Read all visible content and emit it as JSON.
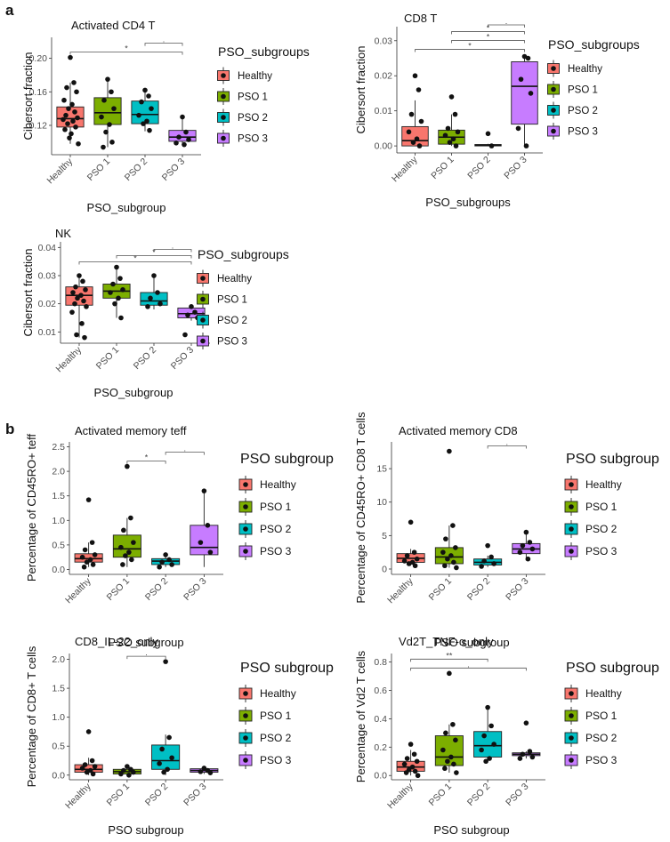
{
  "panel_labels": [
    "a",
    "b"
  ],
  "colors": {
    "Healthy": "#F8766D",
    "PSO 1": "#7CAE00",
    "PSO 2": "#00BFC4",
    "PSO 3": "#C77CFF"
  },
  "chart_data": [
    {
      "type": "box",
      "title": "Activated CD4 T",
      "xlabel": "PSO_subgroup",
      "ylabel": "Cibersort fraction",
      "categories": [
        "Healthy",
        "PSO 1",
        "PSO 2",
        "PSO 3"
      ],
      "yticks": [
        0.12,
        0.16,
        0.2
      ],
      "ytick_labels": [
        "0.12",
        "0.16",
        "0.20"
      ],
      "ylim": [
        0.085,
        0.225
      ],
      "boxes": [
        {
          "group": "Healthy",
          "min": 0.098,
          "q1": 0.118,
          "median": 0.128,
          "q3": 0.142,
          "max": 0.171
        },
        {
          "group": "PSO 1",
          "min": 0.094,
          "q1": 0.121,
          "median": 0.135,
          "q3": 0.153,
          "max": 0.175
        },
        {
          "group": "PSO 2",
          "min": 0.113,
          "q1": 0.122,
          "median": 0.133,
          "q3": 0.149,
          "max": 0.163
        },
        {
          "group": "PSO 3",
          "min": 0.097,
          "q1": 0.101,
          "median": 0.106,
          "q3": 0.114,
          "max": 0.13
        }
      ],
      "points": [
        {
          "group": "Healthy",
          "values": [
            0.201,
            0.171,
            0.165,
            0.16,
            0.15,
            0.145,
            0.14,
            0.136,
            0.132,
            0.129,
            0.127,
            0.125,
            0.122,
            0.118,
            0.115,
            0.11,
            0.105,
            0.098
          ]
        },
        {
          "group": "PSO 1",
          "values": [
            0.175,
            0.16,
            0.15,
            0.14,
            0.13,
            0.121,
            0.112,
            0.1,
            0.094
          ]
        },
        {
          "group": "PSO 2",
          "values": [
            0.162,
            0.155,
            0.148,
            0.14,
            0.132,
            0.125,
            0.122,
            0.114
          ]
        },
        {
          "group": "PSO 3",
          "values": [
            0.13,
            0.112,
            0.106,
            0.103,
            0.099,
            0.097
          ]
        }
      ],
      "significance": [
        {
          "from": "Healthy",
          "to": "PSO 3",
          "label": "*"
        },
        {
          "from": "PSO 2",
          "to": "PSO 3",
          "label": "."
        }
      ],
      "legend_title": "PSO_subgroups",
      "legend_items": [
        "Healthy",
        "PSO 1",
        "PSO 2",
        "PSO 3"
      ]
    },
    {
      "type": "box",
      "title": "CD8 T",
      "xlabel": "PSO_subgroups",
      "ylabel": "Cibersort fraction",
      "categories": [
        "Healthy",
        "PSO 1",
        "PSO 2",
        "PSO 3"
      ],
      "yticks": [
        0.0,
        0.01,
        0.02,
        0.03
      ],
      "ytick_labels": [
        "0.00",
        "0.01",
        "0.02",
        "0.03"
      ],
      "ylim": [
        -0.002,
        0.034
      ],
      "boxes": [
        {
          "group": "Healthy",
          "min": 0.0,
          "q1": 0.0,
          "median": 0.0015,
          "q3": 0.0055,
          "max": 0.013
        },
        {
          "group": "PSO 1",
          "min": 0.0,
          "q1": 0.0005,
          "median": 0.0025,
          "q3": 0.0045,
          "max": 0.009
        },
        {
          "group": "PSO 2",
          "min": 0.0,
          "q1": 0.0,
          "median": 0.0002,
          "q3": 0.0004,
          "max": 0.0006
        },
        {
          "group": "PSO 3",
          "min": 0.0,
          "q1": 0.0062,
          "median": 0.017,
          "q3": 0.024,
          "max": 0.026
        }
      ],
      "points": [
        {
          "group": "Healthy",
          "values": [
            0.02,
            0.016,
            0.009,
            0.007,
            0.004,
            0.002,
            0.001,
            0.0
          ]
        },
        {
          "group": "PSO 1",
          "values": [
            0.014,
            0.009,
            0.005,
            0.004,
            0.003,
            0.002,
            0.001,
            0.0
          ]
        },
        {
          "group": "PSO 2",
          "values": [
            0.0035,
            0.0
          ]
        },
        {
          "group": "PSO 3",
          "values": [
            0.0255,
            0.025,
            0.019,
            0.015,
            0.005,
            0.0
          ]
        }
      ],
      "significance": [
        {
          "from": "Healthy",
          "to": "PSO 3",
          "label": "*"
        },
        {
          "from": "PSO 1",
          "to": "PSO 3",
          "label": "*"
        },
        {
          "from": "PSO 1",
          "to": "PSO 3",
          "label": "*"
        },
        {
          "from": "PSO 2",
          "to": "PSO 3",
          "label": "."
        }
      ],
      "legend_title": "PSO_subgroups",
      "legend_items": [
        "Healthy",
        "PSO 1",
        "PSO 2",
        "PSO 3"
      ]
    },
    {
      "type": "box",
      "title": "NK",
      "xlabel": "PSO_subgroup",
      "ylabel": "Cibersort fraction",
      "categories": [
        "Healthy",
        "PSO 1",
        "PSO 2",
        "PSO 3"
      ],
      "yticks": [
        0.01,
        0.02,
        0.03,
        0.04
      ],
      "ytick_labels": [
        "0.01",
        "0.02",
        "0.03",
        "0.04"
      ],
      "ylim": [
        0.006,
        0.042
      ],
      "boxes": [
        {
          "group": "Healthy",
          "min": 0.008,
          "q1": 0.0195,
          "median": 0.023,
          "q3": 0.026,
          "max": 0.03
        },
        {
          "group": "PSO 1",
          "min": 0.015,
          "q1": 0.022,
          "median": 0.0245,
          "q3": 0.027,
          "max": 0.033
        },
        {
          "group": "PSO 2",
          "min": 0.018,
          "q1": 0.0195,
          "median": 0.021,
          "q3": 0.024,
          "max": 0.03
        },
        {
          "group": "PSO 3",
          "min": 0.014,
          "q1": 0.015,
          "median": 0.0165,
          "q3": 0.0185,
          "max": 0.019
        }
      ],
      "points": [
        {
          "group": "Healthy",
          "values": [
            0.03,
            0.028,
            0.026,
            0.025,
            0.024,
            0.023,
            0.022,
            0.021,
            0.02,
            0.019,
            0.017,
            0.013,
            0.009,
            0.008
          ]
        },
        {
          "group": "PSO 1",
          "values": [
            0.033,
            0.029,
            0.027,
            0.025,
            0.024,
            0.022,
            0.02,
            0.015
          ]
        },
        {
          "group": "PSO 2",
          "values": [
            0.03,
            0.024,
            0.022,
            0.02,
            0.019
          ]
        },
        {
          "group": "PSO 3",
          "values": [
            0.019,
            0.017,
            0.016,
            0.015,
            0.009
          ]
        }
      ],
      "significance": [
        {
          "from": "Healthy",
          "to": "PSO 3",
          "label": "*"
        },
        {
          "from": "PSO 1",
          "to": "PSO 3",
          "label": "*"
        },
        {
          "from": "PSO 2",
          "to": "PSO 3",
          "label": "."
        }
      ],
      "legend_title": "PSO_subgroups",
      "legend_items": [
        "Healthy",
        "PSO 1",
        "PSO 2",
        "PSO 3"
      ]
    },
    {
      "type": "box",
      "title": "Activated memory teff",
      "xlabel": "PSO subgroup",
      "ylabel": "Percentage of CD45RO+ teff",
      "categories": [
        "Healthy",
        "PSO 1",
        "PSO 2",
        "PSO 3"
      ],
      "yticks": [
        0.0,
        0.5,
        1.0,
        1.5,
        2.0,
        2.5
      ],
      "ytick_labels": [
        "0.0",
        "0.5",
        "1.0",
        "1.5",
        "2.0",
        "2.5"
      ],
      "ylim": [
        -0.1,
        2.6
      ],
      "boxes": [
        {
          "group": "Healthy",
          "min": 0.05,
          "q1": 0.15,
          "median": 0.22,
          "q3": 0.32,
          "max": 0.55
        },
        {
          "group": "PSO 1",
          "min": 0.05,
          "q1": 0.25,
          "median": 0.42,
          "q3": 0.7,
          "max": 1.05
        },
        {
          "group": "PSO 2",
          "min": 0.05,
          "q1": 0.1,
          "median": 0.17,
          "q3": 0.22,
          "max": 0.3
        },
        {
          "group": "PSO 3",
          "min": 0.05,
          "q1": 0.3,
          "median": 0.45,
          "q3": 0.9,
          "max": 1.6
        }
      ],
      "points": [
        {
          "group": "Healthy",
          "values": [
            1.42,
            0.55,
            0.4,
            0.3,
            0.25,
            0.2,
            0.15,
            0.1,
            0.05
          ]
        },
        {
          "group": "PSO 1",
          "values": [
            2.1,
            1.05,
            0.8,
            0.55,
            0.45,
            0.35,
            0.28,
            0.2,
            0.1
          ]
        },
        {
          "group": "PSO 2",
          "values": [
            0.3,
            0.2,
            0.15,
            0.1,
            0.05
          ]
        },
        {
          "group": "PSO 3",
          "values": [
            1.6,
            0.9,
            0.55,
            0.35
          ]
        }
      ],
      "significance": [
        {
          "from": "PSO 1",
          "to": "PSO 2",
          "label": "*"
        },
        {
          "from": "PSO 2",
          "to": "PSO 3",
          "label": "."
        }
      ],
      "legend_title": "PSO subgroup",
      "legend_items": [
        "Healthy",
        "PSO 1",
        "PSO 2",
        "PSO 3"
      ]
    },
    {
      "type": "box",
      "title": "Activated memory CD8",
      "xlabel": "PSO subgroup",
      "ylabel": "Percentage of CD45RO+ CD8 T cells",
      "categories": [
        "Healthy",
        "PSO 1",
        "PSO 2",
        "PSO 3"
      ],
      "yticks": [
        0,
        5,
        10,
        15
      ],
      "ytick_labels": [
        "0",
        "5",
        "10",
        "15"
      ],
      "ylim": [
        -0.8,
        19
      ],
      "boxes": [
        {
          "group": "Healthy",
          "min": 0.5,
          "q1": 1.0,
          "median": 1.6,
          "q3": 2.3,
          "max": 3.0
        },
        {
          "group": "PSO 1",
          "min": 0.2,
          "q1": 0.8,
          "median": 1.8,
          "q3": 3.2,
          "max": 6.5
        },
        {
          "group": "PSO 2",
          "min": 0.3,
          "q1": 0.6,
          "median": 1.0,
          "q3": 1.5,
          "max": 2.0
        },
        {
          "group": "PSO 3",
          "min": 1.3,
          "q1": 2.3,
          "median": 3.0,
          "q3": 3.8,
          "max": 5.5
        }
      ],
      "points": [
        {
          "group": "Healthy",
          "values": [
            7.0,
            2.5,
            2.0,
            1.5,
            1.2,
            1.0,
            0.8,
            0.5
          ]
        },
        {
          "group": "PSO 1",
          "values": [
            17.6,
            6.5,
            4.5,
            3.2,
            2.5,
            2.0,
            1.5,
            1.0,
            0.5,
            0.2
          ]
        },
        {
          "group": "PSO 2",
          "values": [
            3.5,
            1.8,
            1.2,
            0.8,
            0.4
          ]
        },
        {
          "group": "PSO 3",
          "values": [
            5.5,
            4.0,
            3.5,
            3.0,
            2.5,
            1.5
          ]
        }
      ],
      "significance": [
        {
          "from": "PSO 2",
          "to": "PSO 3",
          "label": "."
        }
      ],
      "legend_title": "PSO subgroup",
      "legend_items": [
        "Healthy",
        "PSO 1",
        "PSO 2",
        "PSO 3"
      ]
    },
    {
      "type": "box",
      "title": "CD8_IL-22_only",
      "xlabel": "PSO subgroup",
      "ylabel": "Percentage of CD8+ T cells",
      "categories": [
        "Healthy",
        "PSO 1",
        "PSO 2",
        "PSO 3"
      ],
      "yticks": [
        0.0,
        0.5,
        1.0,
        1.5,
        2.0
      ],
      "ytick_labels": [
        "0.0",
        "0.5",
        "1.0",
        "1.5",
        "2.0"
      ],
      "ylim": [
        -0.08,
        2.1
      ],
      "boxes": [
        {
          "group": "Healthy",
          "min": 0.0,
          "q1": 0.05,
          "median": 0.1,
          "q3": 0.18,
          "max": 0.3
        },
        {
          "group": "PSO 1",
          "min": 0.0,
          "q1": 0.02,
          "median": 0.06,
          "q3": 0.1,
          "max": 0.15
        },
        {
          "group": "PSO 2",
          "min": 0.0,
          "q1": 0.1,
          "median": 0.25,
          "q3": 0.52,
          "max": 0.7
        },
        {
          "group": "PSO 3",
          "min": 0.02,
          "q1": 0.05,
          "median": 0.08,
          "q3": 0.11,
          "max": 0.15
        }
      ],
      "points": [
        {
          "group": "Healthy",
          "values": [
            0.75,
            0.25,
            0.18,
            0.15,
            0.12,
            0.08,
            0.05,
            0.02
          ]
        },
        {
          "group": "PSO 1",
          "values": [
            0.15,
            0.1,
            0.08,
            0.05,
            0.02,
            0.0
          ]
        },
        {
          "group": "PSO 2",
          "values": [
            1.96,
            0.65,
            0.45,
            0.3,
            0.2,
            0.1,
            0.05
          ]
        },
        {
          "group": "PSO 3",
          "values": [
            0.12,
            0.08,
            0.06,
            0.04
          ]
        }
      ],
      "significance": [
        {
          "from": "PSO 1",
          "to": "PSO 2",
          "label": "."
        }
      ],
      "legend_title": "PSO subgroup",
      "legend_items": [
        "Healthy",
        "PSO 1",
        "PSO 2",
        "PSO 3"
      ]
    },
    {
      "type": "box",
      "title": "Vd2T_TNF-α_only",
      "xlabel": "PSO subgroup",
      "ylabel": "Percentage of Vd2 T cells",
      "categories": [
        "Healthy",
        "PSO 1",
        "PSO 2",
        "PSO 3"
      ],
      "yticks": [
        0.0,
        0.2,
        0.4,
        0.6,
        0.8
      ],
      "ytick_labels": [
        "0.0",
        "0.2",
        "0.4",
        "0.6",
        "0.8"
      ],
      "ylim": [
        -0.03,
        0.86
      ],
      "boxes": [
        {
          "group": "Healthy",
          "min": 0.0,
          "q1": 0.03,
          "median": 0.06,
          "q3": 0.1,
          "max": 0.18
        },
        {
          "group": "PSO 1",
          "min": 0.02,
          "q1": 0.07,
          "median": 0.13,
          "q3": 0.28,
          "max": 0.36
        },
        {
          "group": "PSO 2",
          "min": 0.1,
          "q1": 0.13,
          "median": 0.21,
          "q3": 0.31,
          "max": 0.48
        },
        {
          "group": "PSO 3",
          "min": 0.12,
          "q1": 0.14,
          "median": 0.15,
          "q3": 0.16,
          "max": 0.17
        }
      ],
      "points": [
        {
          "group": "Healthy",
          "values": [
            0.22,
            0.15,
            0.12,
            0.1,
            0.08,
            0.06,
            0.04,
            0.03,
            0.02,
            0.0
          ]
        },
        {
          "group": "PSO 1",
          "values": [
            0.72,
            0.36,
            0.3,
            0.25,
            0.18,
            0.13,
            0.1,
            0.08,
            0.05,
            0.02
          ]
        },
        {
          "group": "PSO 2",
          "values": [
            0.48,
            0.35,
            0.28,
            0.22,
            0.18,
            0.12,
            0.1
          ]
        },
        {
          "group": "PSO 3",
          "values": [
            0.37,
            0.17,
            0.15,
            0.13,
            0.12
          ]
        }
      ],
      "significance": [
        {
          "from": "Healthy",
          "to": "PSO 2",
          "label": "**"
        },
        {
          "from": "Healthy",
          "to": "PSO 3",
          "label": "."
        }
      ],
      "legend_title": "PSO subgroup",
      "legend_items": [
        "Healthy",
        "PSO 1",
        "PSO 2",
        "PSO 3"
      ]
    }
  ]
}
